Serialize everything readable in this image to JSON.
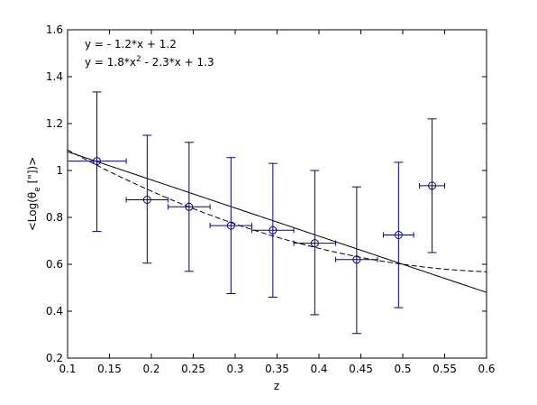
{
  "chart_data": {
    "type": "scatter",
    "title": "",
    "xlabel": "z",
    "ylabel": "<Log(θe [\"]))>",
    "ylabel_parts": {
      "pre": "<Log(θ",
      "sub": "e",
      "post": " [\"])>"
    },
    "xlim": [
      0.1,
      0.6
    ],
    "ylim": [
      0.2,
      1.6
    ],
    "x_ticks": [
      0.1,
      0.15,
      0.2,
      0.25,
      0.3,
      0.35,
      0.4,
      0.45,
      0.5,
      0.55,
      0.6
    ],
    "x_tick_labels": [
      "0.1",
      "0.15",
      "0.2",
      "0.25",
      "0.3",
      "0.35",
      "0.4",
      "0.45",
      "0.5",
      "0.55",
      "0.6"
    ],
    "y_ticks": [
      0.2,
      0.4,
      0.6,
      0.8,
      1.0,
      1.2,
      1.4,
      1.6
    ],
    "y_tick_labels": [
      "0.2",
      "0.4",
      "0.6",
      "0.8",
      "1",
      "1.2",
      "1.4",
      "1.6"
    ],
    "grid": false,
    "series": [
      {
        "color": "#00008b",
        "marker": "circle",
        "points": [
          {
            "x": 0.135,
            "y": 1.04,
            "xerr": 0.035,
            "ylow": 0.74,
            "yhigh": 1.335
          },
          {
            "x": 0.195,
            "y": 0.875,
            "xerr": 0.025,
            "ylow": 0.605,
            "yhigh": 1.15
          },
          {
            "x": 0.245,
            "y": 0.845,
            "xerr": 0.025,
            "ylow": 0.57,
            "yhigh": 1.12
          },
          {
            "x": 0.295,
            "y": 0.765,
            "xerr": 0.025,
            "ylow": 0.475,
            "yhigh": 1.055
          },
          {
            "x": 0.345,
            "y": 0.745,
            "xerr": 0.025,
            "ylow": 0.46,
            "yhigh": 1.03
          },
          {
            "x": 0.395,
            "y": 0.69,
            "xerr": 0.025,
            "ylow": 0.385,
            "yhigh": 1.0
          },
          {
            "x": 0.445,
            "y": 0.62,
            "xerr": 0.025,
            "ylow": 0.305,
            "yhigh": 0.93
          },
          {
            "x": 0.495,
            "y": 0.725,
            "xerr": 0.018,
            "ylow": 0.415,
            "yhigh": 1.035
          },
          {
            "x": 0.535,
            "y": 0.935,
            "xerr": 0.015,
            "ylow": 0.65,
            "yhigh": 1.22
          }
        ]
      }
    ],
    "fits": [
      {
        "style": "solid",
        "kind": "linear",
        "coef": [
          -1.2,
          1.2
        ],
        "label_parts": [
          "y = - 1.2*x + 1.2"
        ]
      },
      {
        "style": "dashed",
        "kind": "quadratic",
        "coef": [
          1.8,
          -2.3,
          1.3
        ],
        "label_parts": [
          "y = 1.8*x",
          "2",
          " - 2.3*x + 1.3"
        ]
      }
    ],
    "fit_curve_color": "#000000",
    "axes_color": "#000000"
  }
}
